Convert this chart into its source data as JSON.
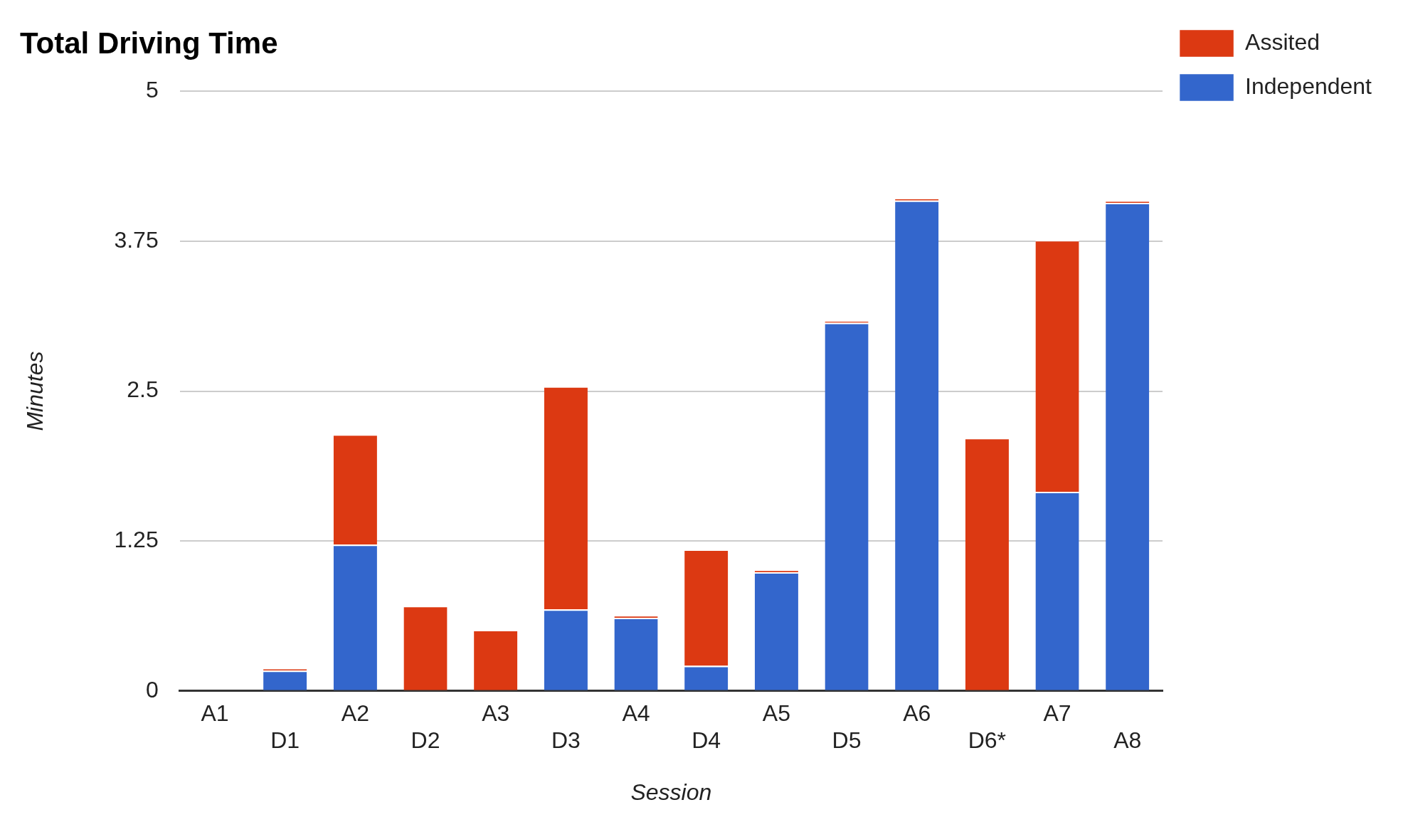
{
  "chart_data": {
    "type": "bar",
    "title": "Total Driving Time",
    "xlabel": "Session",
    "ylabel": "Minutes",
    "categories": [
      "A1",
      "D1",
      "A2",
      "D2",
      "A3",
      "D3",
      "A4",
      "D4",
      "A5",
      "D5",
      "A6",
      "D6*",
      "A7",
      "A8"
    ],
    "stacked": true,
    "ylim": [
      0,
      5
    ],
    "yticks": [
      0,
      1.25,
      2.5,
      3.75,
      5
    ],
    "grid": "y",
    "legend": "top right",
    "series": [
      {
        "name": "Independent",
        "color": "#3366cc",
        "values": [
          0,
          0.17,
          1.22,
          0,
          0,
          0.68,
          0.61,
          0.21,
          0.99,
          3.07,
          4.09,
          0,
          1.66,
          4.07
        ]
      },
      {
        "name": "Assited",
        "color": "#dc3912",
        "values": [
          0,
          0.02,
          0.92,
          0.71,
          0.51,
          1.86,
          0.02,
          0.97,
          0.02,
          0.02,
          0.02,
          2.11,
          2.1,
          0.02
        ]
      }
    ]
  }
}
